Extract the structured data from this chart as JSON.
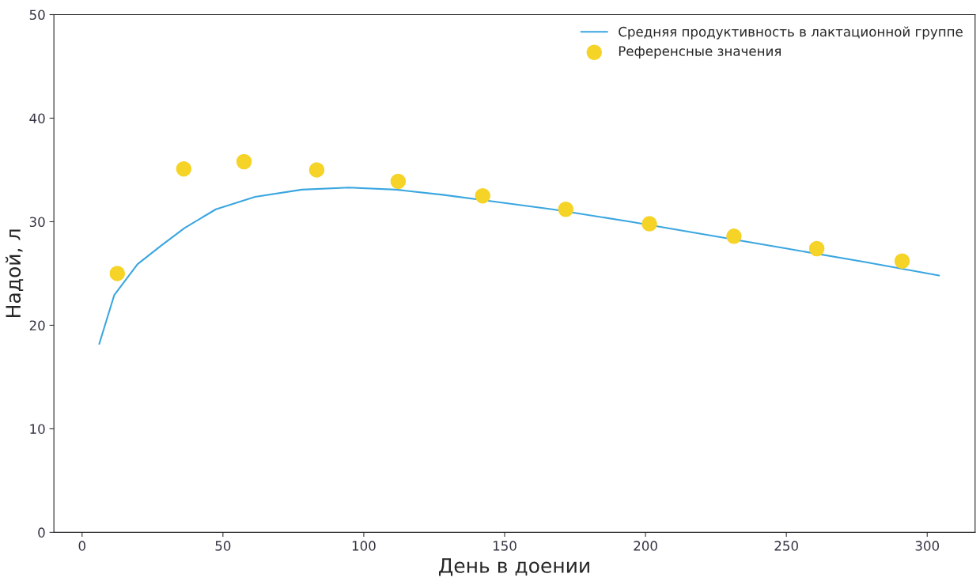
{
  "chart_data": {
    "type": "line",
    "xlabel": "День в доении",
    "ylabel": "Надой, л",
    "xlim": [
      -10,
      317
    ],
    "ylim": [
      0,
      50
    ],
    "xticks": [
      0,
      50,
      100,
      150,
      200,
      250,
      300
    ],
    "yticks": [
      0,
      10,
      20,
      30,
      40,
      50
    ],
    "grid": false,
    "legend": "top right",
    "series": [
      {
        "name": "Средняя продуктивность в лактационной группе",
        "color": "#3aa6e0",
        "marker": "none",
        "line_style": "solid",
        "x": [
          6.1,
          11.4,
          19.7,
          28.1,
          36.4,
          47.5,
          61.4,
          78,
          94.7,
          111.4,
          128,
          144.7,
          166.9,
          194.7,
          222.5,
          250.3,
          278,
          304.2
        ],
        "values": [
          18.2,
          22.9,
          25.9,
          27.7,
          29.4,
          31.2,
          32.4,
          33.1,
          33.3,
          33.1,
          32.6,
          32.0,
          31.2,
          30.0,
          28.7,
          27.4,
          26.1,
          24.8
        ]
      },
      {
        "name": "Референсные значения",
        "type": "scatter",
        "color": "#f5d327",
        "marker": "circle",
        "x": [
          12.5,
          36.1,
          57.5,
          83.3,
          112.2,
          142.2,
          171.7,
          201.4,
          231.4,
          260.8,
          291.1
        ],
        "values": [
          25.0,
          35.1,
          35.8,
          35.0,
          33.9,
          32.5,
          31.2,
          29.8,
          28.6,
          27.4,
          26.2
        ]
      }
    ]
  }
}
